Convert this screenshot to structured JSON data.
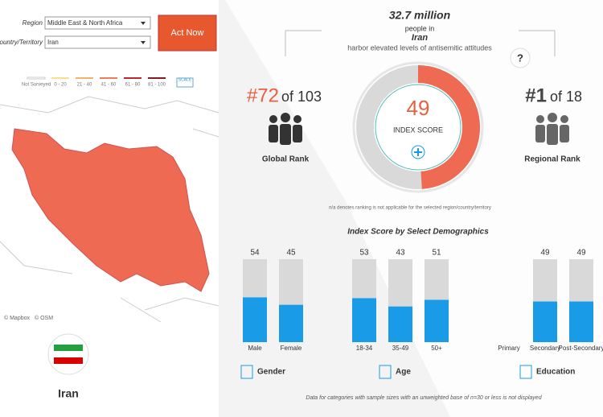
{
  "filters": {
    "region_label": "Region",
    "region_value": "Middle East & North Africa",
    "country_label": "Country/Territory",
    "country_value": "Iran",
    "button": "Act Now"
  },
  "legend": {
    "items": [
      "Not Surveyed",
      "0 - 20",
      "21 - 40",
      "41 - 60",
      "61 - 80",
      "81 - 100"
    ],
    "colors": [
      "#ffffff",
      "#f6e08a",
      "#f3b46a",
      "#ef7d57",
      "#c2272d",
      "#8a1a1f"
    ],
    "scale": "SCALE"
  },
  "map": {
    "attribution": [
      "© Mapbox",
      "© OSM"
    ]
  },
  "country_card": {
    "name": "Iran"
  },
  "headline": {
    "count": "32.7 million",
    "line1": "people in",
    "country": "Iran",
    "line2": "harbor elevated levels of antisemitic attitudes",
    "help": "?"
  },
  "global_rank": {
    "rank": "#72",
    "of": "of 103",
    "label": "Global Rank"
  },
  "index": {
    "value": 49,
    "label": "INDEX SCORE"
  },
  "regional_rank": {
    "rank": "#1",
    "of": "of 18",
    "label": "Regional Rank"
  },
  "note": "n/a denotes ranking is not applicable for the selected region/country/territory",
  "demographics": {
    "title": "Index Score by Select Demographics",
    "ylim": [
      0,
      100
    ],
    "color": "#1a9be8",
    "groups": [
      {
        "name": "Gender",
        "categories": [
          "Male",
          "Female"
        ],
        "values": [
          54,
          45
        ]
      },
      {
        "name": "Age",
        "categories": [
          "18-34",
          "35-49",
          "50+"
        ],
        "values": [
          53,
          43,
          51
        ]
      },
      {
        "name": "Education",
        "categories": [
          "Primary",
          "Secondary",
          "Post-Secondary"
        ],
        "values": [
          null,
          49,
          49
        ]
      }
    ]
  },
  "footnote": "Data for categories with sample sizes with an unweighted base of n=30 or less is not displayed"
}
